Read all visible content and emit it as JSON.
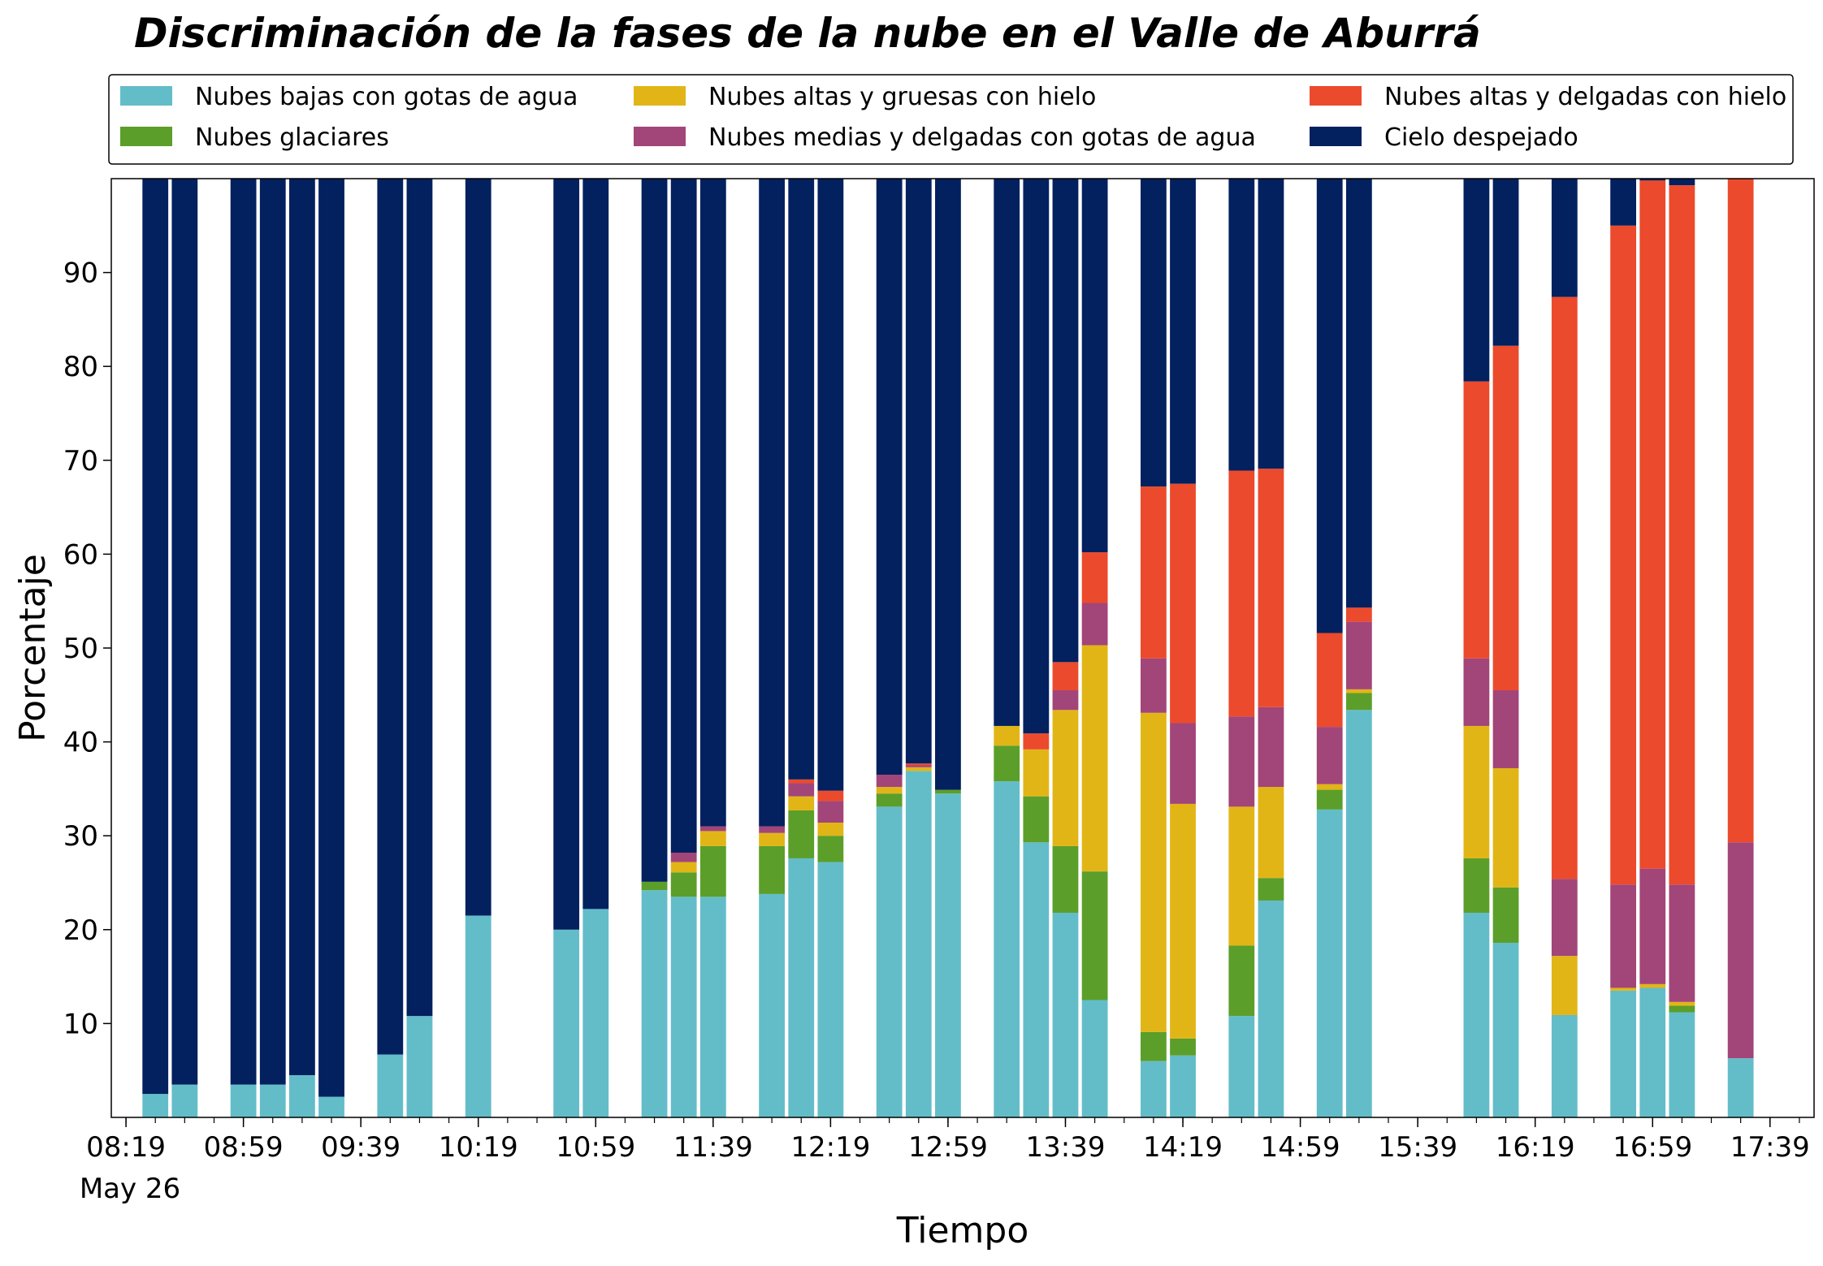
{
  "chart_data": {
    "type": "bar",
    "stacked": true,
    "title": "Discriminación de la fases de la nube en el Valle de Aburrá",
    "xlabel": "Tiempo",
    "ylabel": "Porcentaje",
    "ylim": [
      0,
      100
    ],
    "yticks": [
      10,
      20,
      30,
      40,
      50,
      60,
      70,
      80,
      90
    ],
    "x_range": [
      "08:14",
      "17:54"
    ],
    "x_ticks": [
      "08:19",
      "08:59",
      "09:39",
      "10:19",
      "10:59",
      "11:39",
      "12:19",
      "12:59",
      "13:39",
      "14:19",
      "14:59",
      "15:39",
      "16:19",
      "16:59",
      "17:39"
    ],
    "x_date_label": "May 26",
    "grid": false,
    "legend_position": "top, above plot (3 columns)",
    "series": [
      {
        "name": "Nubes bajas con gotas de agua",
        "color": "#63bdc9"
      },
      {
        "name": "Nubes glaciares",
        "color": "#5c9e2a"
      },
      {
        "name": "Nubes altas y gruesas con hielo",
        "color": "#e2b517"
      },
      {
        "name": "Nubes medias y delgadas con gotas de agua",
        "color": "#a24579"
      },
      {
        "name": "Nubes altas y delgadas con hielo",
        "color": "#ec4a2c"
      },
      {
        "name": "Cielo despejado",
        "color": "#03205f"
      }
    ],
    "bars": [
      {
        "time": "08:29",
        "values": [
          2.5,
          0,
          0,
          0,
          0,
          97.5
        ]
      },
      {
        "time": "08:39",
        "values": [
          3.5,
          0,
          0,
          0,
          0,
          96.5
        ]
      },
      {
        "time": "08:59",
        "values": [
          3.5,
          0,
          0,
          0,
          0,
          96.5
        ]
      },
      {
        "time": "09:09",
        "values": [
          3.5,
          0,
          0,
          0,
          0,
          96.5
        ]
      },
      {
        "time": "09:19",
        "values": [
          4.5,
          0,
          0,
          0,
          0,
          95.5
        ]
      },
      {
        "time": "09:29",
        "values": [
          2.2,
          0,
          0,
          0,
          0,
          97.8
        ]
      },
      {
        "time": "09:49",
        "values": [
          6.7,
          0,
          0,
          0,
          0,
          93.3
        ]
      },
      {
        "time": "09:59",
        "values": [
          10.8,
          0,
          0,
          0,
          0,
          89.2
        ]
      },
      {
        "time": "10:19",
        "values": [
          21.5,
          0,
          0,
          0,
          0,
          78.5
        ]
      },
      {
        "time": "10:49",
        "values": [
          20.0,
          0,
          0,
          0,
          0,
          80.0
        ]
      },
      {
        "time": "10:59",
        "values": [
          22.2,
          0,
          0,
          0,
          0,
          77.8
        ]
      },
      {
        "time": "11:19",
        "values": [
          24.2,
          0.9,
          0,
          0,
          0,
          74.9
        ]
      },
      {
        "time": "11:29",
        "values": [
          23.5,
          2.6,
          1.1,
          1.0,
          0,
          71.8
        ]
      },
      {
        "time": "11:39",
        "values": [
          23.5,
          5.4,
          1.6,
          0.5,
          0,
          69.0
        ]
      },
      {
        "time": "11:59",
        "values": [
          23.8,
          5.1,
          1.4,
          0.7,
          0,
          69.0
        ]
      },
      {
        "time": "12:09",
        "values": [
          27.6,
          5.1,
          1.5,
          1.4,
          0.4,
          64.0
        ]
      },
      {
        "time": "12:19",
        "values": [
          27.2,
          2.8,
          1.4,
          2.3,
          1.1,
          65.2
        ]
      },
      {
        "time": "12:39",
        "values": [
          33.1,
          1.4,
          0.7,
          1.3,
          0,
          63.5
        ]
      },
      {
        "time": "12:49",
        "values": [
          36.9,
          0,
          0.4,
          0.2,
          0.2,
          62.3
        ]
      },
      {
        "time": "12:59",
        "values": [
          34.5,
          0.4,
          0,
          0,
          0,
          65.1
        ]
      },
      {
        "time": "13:19",
        "values": [
          35.8,
          3.8,
          2.1,
          0,
          0,
          58.3
        ]
      },
      {
        "time": "13:29",
        "values": [
          29.3,
          4.9,
          5.0,
          0,
          1.7,
          59.1
        ]
      },
      {
        "time": "13:39",
        "values": [
          21.8,
          7.1,
          14.5,
          2.1,
          3.0,
          51.5
        ]
      },
      {
        "time": "13:49",
        "values": [
          12.5,
          13.7,
          24.1,
          4.5,
          5.4,
          39.8
        ]
      },
      {
        "time": "14:09",
        "values": [
          6.0,
          3.1,
          34.0,
          5.8,
          18.3,
          32.8
        ]
      },
      {
        "time": "14:19",
        "values": [
          6.6,
          1.8,
          25.0,
          8.6,
          25.5,
          32.5
        ]
      },
      {
        "time": "14:39",
        "values": [
          10.8,
          7.5,
          14.8,
          9.6,
          26.2,
          31.1
        ]
      },
      {
        "time": "14:49",
        "values": [
          23.1,
          2.4,
          9.7,
          8.5,
          25.4,
          30.9
        ]
      },
      {
        "time": "15:09",
        "values": [
          32.8,
          2.1,
          0.6,
          6.1,
          10.0,
          48.4
        ]
      },
      {
        "time": "15:19",
        "values": [
          43.4,
          1.8,
          0.4,
          7.2,
          1.5,
          45.7
        ]
      },
      {
        "time": "15:59",
        "values": [
          21.8,
          5.8,
          14.1,
          7.2,
          29.5,
          21.6
        ]
      },
      {
        "time": "16:09",
        "values": [
          18.6,
          5.9,
          12.7,
          8.3,
          36.7,
          17.8
        ]
      },
      {
        "time": "16:29",
        "values": [
          10.9,
          0,
          6.3,
          8.2,
          62.0,
          12.6
        ]
      },
      {
        "time": "16:49",
        "values": [
          13.5,
          0,
          0.3,
          11.0,
          70.2,
          5.0
        ]
      },
      {
        "time": "16:59",
        "values": [
          13.8,
          0,
          0.4,
          12.3,
          73.3,
          0.2
        ]
      },
      {
        "time": "17:09",
        "values": [
          11.2,
          0.7,
          0.4,
          12.5,
          74.5,
          0.7
        ]
      },
      {
        "time": "17:29",
        "values": [
          6.3,
          0,
          0,
          23.0,
          70.7,
          0
        ]
      }
    ]
  }
}
